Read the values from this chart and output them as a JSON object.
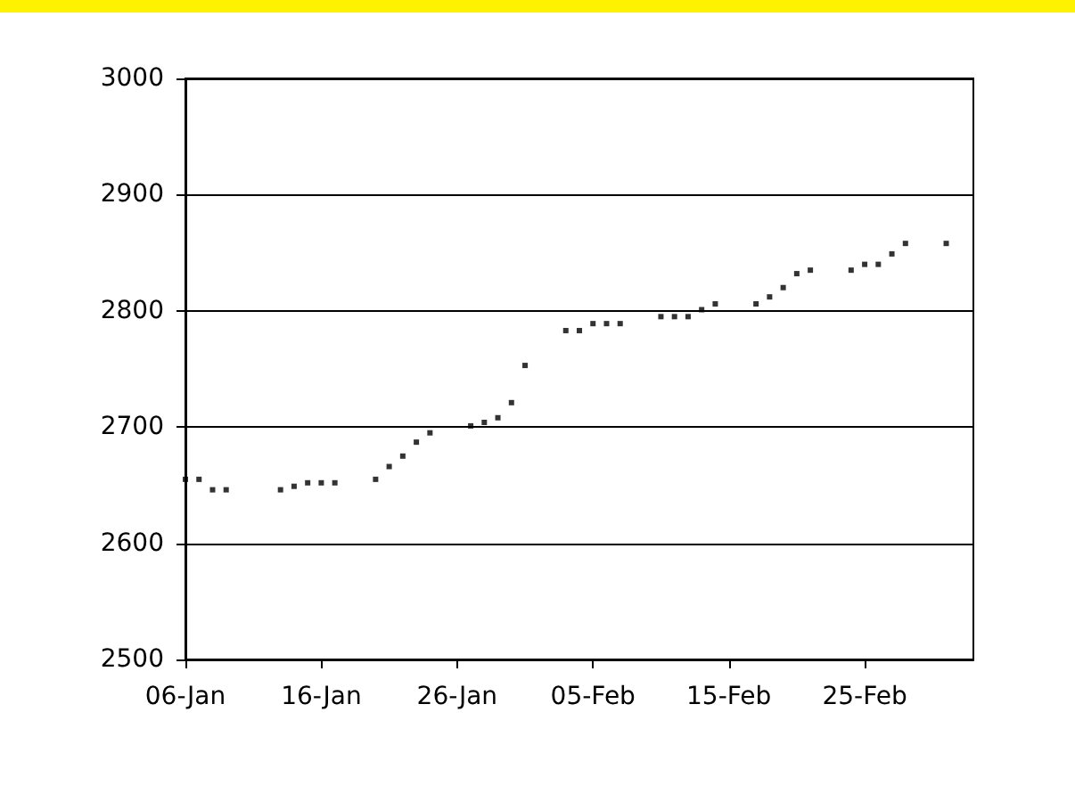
{
  "chart_data": {
    "type": "scatter",
    "marker": "square",
    "grid": "y",
    "x": [
      "--01-06",
      "--01-07",
      "--01-08",
      "--01-09",
      "--01-13",
      "--01-14",
      "--01-15",
      "--01-16",
      "--01-17",
      "--01-20",
      "--01-21",
      "--01-22",
      "--01-23",
      "--01-24",
      "--01-27",
      "--01-28",
      "--01-29",
      "--01-30",
      "--01-31",
      "--02-03",
      "--02-04",
      "--02-05",
      "--02-06",
      "--02-07",
      "--02-10",
      "--02-11",
      "--02-12",
      "--02-13",
      "--02-14",
      "--02-17",
      "--02-18",
      "--02-19",
      "--02-20",
      "--02-21",
      "--02-24",
      "--02-25",
      "--02-26",
      "--02-27",
      "--02-28",
      "--03-03"
    ],
    "series": [
      {
        "color": "#000000",
        "values": [
          2655,
          2655,
          2646,
          2646,
          2646,
          2649,
          2652,
          2652,
          2652,
          2655,
          2666,
          2675,
          2687,
          2695,
          2701,
          2704,
          2708,
          2721,
          2753,
          2783,
          2783,
          2789,
          2789,
          2789,
          2795,
          2795,
          2795,
          2801,
          2806,
          2806,
          2812,
          2820,
          2832,
          2835,
          2835,
          2840,
          2840,
          2849,
          2858,
          2858
        ]
      }
    ],
    "xlim": [
      "--01-06",
      "--03-05"
    ],
    "xticks": [
      {
        "value": "--01-06",
        "label": "06-Jan"
      },
      {
        "value": "--01-16",
        "label": "16-Jan"
      },
      {
        "value": "--01-26",
        "label": "26-Jan"
      },
      {
        "value": "--02-05",
        "label": "05-Feb"
      },
      {
        "value": "--02-15",
        "label": "15-Feb"
      },
      {
        "value": "--02-25",
        "label": "25-Feb"
      }
    ],
    "ylim": [
      2500,
      3000
    ],
    "yticks": [
      2500,
      2600,
      2700,
      2800,
      2900,
      3000
    ]
  }
}
